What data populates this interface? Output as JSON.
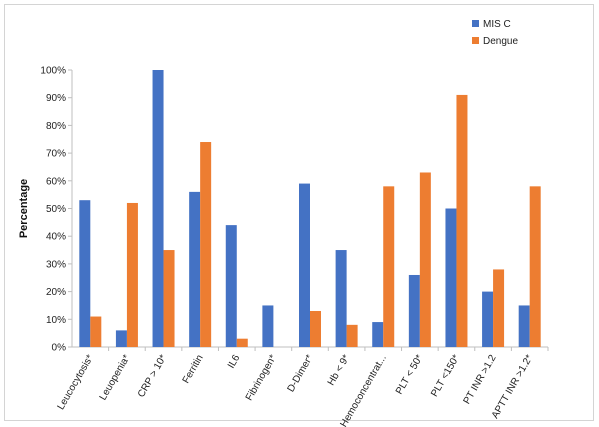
{
  "chart_data": {
    "type": "bar",
    "ylabel": "Percentage",
    "xlabel": "",
    "ylim": [
      0,
      100
    ],
    "yticks": [
      "0%",
      "10%",
      "20%",
      "30%",
      "40%",
      "50%",
      "60%",
      "70%",
      "80%",
      "90%",
      "100%"
    ],
    "grid": false,
    "legend_position": "top-right",
    "categories": [
      "Leucocytosis*",
      "Leuopenia*",
      "CRP > 10*",
      "Ferritin",
      "IL6",
      "Fibrinogen*",
      "D-Dimer*",
      "Hb < 9*",
      "Hemoconcentrat...",
      "PLT < 50*",
      "PLT <150*",
      "PT INR >1.2",
      "APTT INR >1.2*"
    ],
    "series": [
      {
        "name": "MIS C",
        "color": "#4472C4",
        "values": [
          53,
          6,
          100,
          56,
          44,
          15,
          59,
          35,
          9,
          26,
          50,
          20,
          15
        ]
      },
      {
        "name": "Dengue",
        "color": "#ED7D31",
        "values": [
          11,
          52,
          35,
          74,
          3,
          0,
          13,
          8,
          58,
          63,
          91,
          28,
          58
        ]
      }
    ]
  }
}
